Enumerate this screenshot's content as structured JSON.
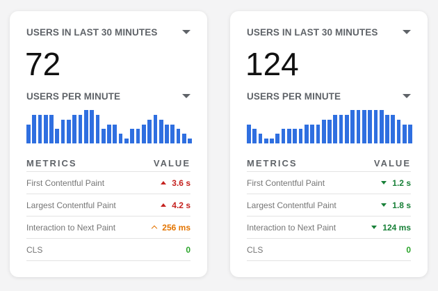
{
  "colors": {
    "bar": "#2f6fe0",
    "poor": "#c5221f",
    "needs_improvement": "#e37400",
    "good": "#188038"
  },
  "cards": [
    {
      "users_label": "USERS IN LAST 30 MINUTES",
      "users_count": "72",
      "per_minute_label": "USERS PER MINUTE",
      "sparkline": [
        4,
        6,
        6,
        6,
        6,
        3,
        5,
        5,
        6,
        6,
        7,
        7,
        6,
        3,
        4,
        4,
        2,
        1,
        3,
        3,
        4,
        5,
        6,
        5,
        4,
        4,
        3,
        2,
        1
      ],
      "metrics_header": {
        "name": "METRICS",
        "value": "VALUE"
      },
      "metrics": [
        {
          "name": "First Contentful Paint",
          "value": "3.6 s",
          "status": "poor",
          "icon": "triangle-up-icon"
        },
        {
          "name": "Largest Contentful Paint",
          "value": "4.2 s",
          "status": "poor",
          "icon": "triangle-up-icon"
        },
        {
          "name": "Interaction to Next Paint",
          "value": "256 ms",
          "status": "needs_improvement",
          "icon": "chevron-up-icon"
        },
        {
          "name": "CLS",
          "value": "0",
          "status": "good",
          "icon": ""
        }
      ]
    },
    {
      "users_label": "USERS IN LAST 30 MINUTES",
      "users_count": "124",
      "per_minute_label": "USERS PER MINUTE",
      "sparkline": [
        4,
        3,
        2,
        1,
        1,
        2,
        3,
        3,
        3,
        3,
        4,
        4,
        4,
        5,
        5,
        6,
        6,
        6,
        7,
        7,
        7,
        7,
        7,
        7,
        6,
        6,
        5,
        4,
        4
      ],
      "metrics_header": {
        "name": "METRICS",
        "value": "VALUE"
      },
      "metrics": [
        {
          "name": "First Contentful Paint",
          "value": "1.2 s",
          "status": "good",
          "icon": "triangle-down-icon"
        },
        {
          "name": "Largest Contentful Paint",
          "value": "1.8 s",
          "status": "good",
          "icon": "triangle-down-icon"
        },
        {
          "name": "Interaction to Next Paint",
          "value": "124 ms",
          "status": "good",
          "icon": "triangle-down-icon"
        },
        {
          "name": "CLS",
          "value": "0",
          "status": "good",
          "icon": ""
        }
      ]
    }
  ]
}
